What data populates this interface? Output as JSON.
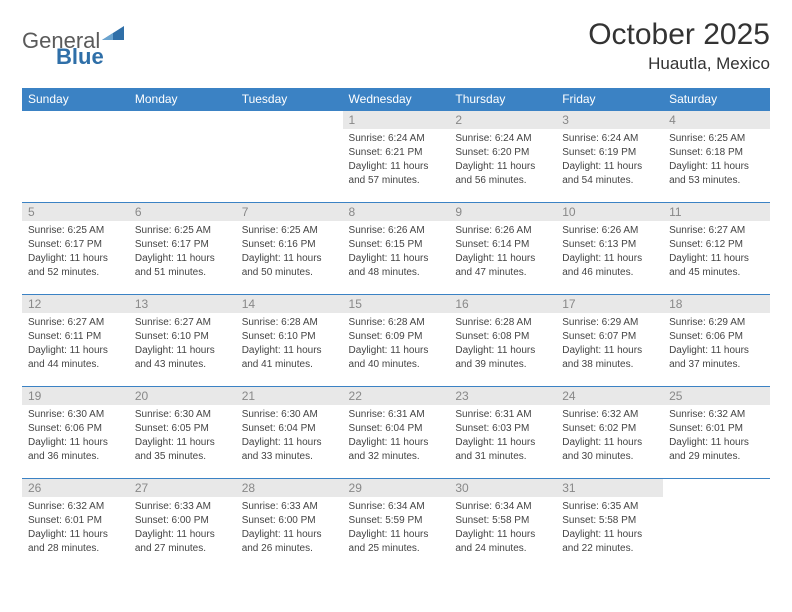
{
  "brand": {
    "word1": "General",
    "word2": "Blue"
  },
  "header": {
    "month_title": "October 2025",
    "location": "Huautla, Mexico"
  },
  "colors": {
    "header_bg": "#3b82c4",
    "header_text": "#ffffff",
    "date_band_bg": "#e8e8e8",
    "date_text": "#888888",
    "body_text": "#444444",
    "row_border": "#3b82c4"
  },
  "day_labels": [
    "Sunday",
    "Monday",
    "Tuesday",
    "Wednesday",
    "Thursday",
    "Friday",
    "Saturday"
  ],
  "weeks": [
    [
      {
        "date": "",
        "sunrise": "",
        "sunset": "",
        "daylight1": "",
        "daylight2": ""
      },
      {
        "date": "",
        "sunrise": "",
        "sunset": "",
        "daylight1": "",
        "daylight2": ""
      },
      {
        "date": "",
        "sunrise": "",
        "sunset": "",
        "daylight1": "",
        "daylight2": ""
      },
      {
        "date": "1",
        "sunrise": "Sunrise: 6:24 AM",
        "sunset": "Sunset: 6:21 PM",
        "daylight1": "Daylight: 11 hours",
        "daylight2": "and 57 minutes."
      },
      {
        "date": "2",
        "sunrise": "Sunrise: 6:24 AM",
        "sunset": "Sunset: 6:20 PM",
        "daylight1": "Daylight: 11 hours",
        "daylight2": "and 56 minutes."
      },
      {
        "date": "3",
        "sunrise": "Sunrise: 6:24 AM",
        "sunset": "Sunset: 6:19 PM",
        "daylight1": "Daylight: 11 hours",
        "daylight2": "and 54 minutes."
      },
      {
        "date": "4",
        "sunrise": "Sunrise: 6:25 AM",
        "sunset": "Sunset: 6:18 PM",
        "daylight1": "Daylight: 11 hours",
        "daylight2": "and 53 minutes."
      }
    ],
    [
      {
        "date": "5",
        "sunrise": "Sunrise: 6:25 AM",
        "sunset": "Sunset: 6:17 PM",
        "daylight1": "Daylight: 11 hours",
        "daylight2": "and 52 minutes."
      },
      {
        "date": "6",
        "sunrise": "Sunrise: 6:25 AM",
        "sunset": "Sunset: 6:17 PM",
        "daylight1": "Daylight: 11 hours",
        "daylight2": "and 51 minutes."
      },
      {
        "date": "7",
        "sunrise": "Sunrise: 6:25 AM",
        "sunset": "Sunset: 6:16 PM",
        "daylight1": "Daylight: 11 hours",
        "daylight2": "and 50 minutes."
      },
      {
        "date": "8",
        "sunrise": "Sunrise: 6:26 AM",
        "sunset": "Sunset: 6:15 PM",
        "daylight1": "Daylight: 11 hours",
        "daylight2": "and 48 minutes."
      },
      {
        "date": "9",
        "sunrise": "Sunrise: 6:26 AM",
        "sunset": "Sunset: 6:14 PM",
        "daylight1": "Daylight: 11 hours",
        "daylight2": "and 47 minutes."
      },
      {
        "date": "10",
        "sunrise": "Sunrise: 6:26 AM",
        "sunset": "Sunset: 6:13 PM",
        "daylight1": "Daylight: 11 hours",
        "daylight2": "and 46 minutes."
      },
      {
        "date": "11",
        "sunrise": "Sunrise: 6:27 AM",
        "sunset": "Sunset: 6:12 PM",
        "daylight1": "Daylight: 11 hours",
        "daylight2": "and 45 minutes."
      }
    ],
    [
      {
        "date": "12",
        "sunrise": "Sunrise: 6:27 AM",
        "sunset": "Sunset: 6:11 PM",
        "daylight1": "Daylight: 11 hours",
        "daylight2": "and 44 minutes."
      },
      {
        "date": "13",
        "sunrise": "Sunrise: 6:27 AM",
        "sunset": "Sunset: 6:10 PM",
        "daylight1": "Daylight: 11 hours",
        "daylight2": "and 43 minutes."
      },
      {
        "date": "14",
        "sunrise": "Sunrise: 6:28 AM",
        "sunset": "Sunset: 6:10 PM",
        "daylight1": "Daylight: 11 hours",
        "daylight2": "and 41 minutes."
      },
      {
        "date": "15",
        "sunrise": "Sunrise: 6:28 AM",
        "sunset": "Sunset: 6:09 PM",
        "daylight1": "Daylight: 11 hours",
        "daylight2": "and 40 minutes."
      },
      {
        "date": "16",
        "sunrise": "Sunrise: 6:28 AM",
        "sunset": "Sunset: 6:08 PM",
        "daylight1": "Daylight: 11 hours",
        "daylight2": "and 39 minutes."
      },
      {
        "date": "17",
        "sunrise": "Sunrise: 6:29 AM",
        "sunset": "Sunset: 6:07 PM",
        "daylight1": "Daylight: 11 hours",
        "daylight2": "and 38 minutes."
      },
      {
        "date": "18",
        "sunrise": "Sunrise: 6:29 AM",
        "sunset": "Sunset: 6:06 PM",
        "daylight1": "Daylight: 11 hours",
        "daylight2": "and 37 minutes."
      }
    ],
    [
      {
        "date": "19",
        "sunrise": "Sunrise: 6:30 AM",
        "sunset": "Sunset: 6:06 PM",
        "daylight1": "Daylight: 11 hours",
        "daylight2": "and 36 minutes."
      },
      {
        "date": "20",
        "sunrise": "Sunrise: 6:30 AM",
        "sunset": "Sunset: 6:05 PM",
        "daylight1": "Daylight: 11 hours",
        "daylight2": "and 35 minutes."
      },
      {
        "date": "21",
        "sunrise": "Sunrise: 6:30 AM",
        "sunset": "Sunset: 6:04 PM",
        "daylight1": "Daylight: 11 hours",
        "daylight2": "and 33 minutes."
      },
      {
        "date": "22",
        "sunrise": "Sunrise: 6:31 AM",
        "sunset": "Sunset: 6:04 PM",
        "daylight1": "Daylight: 11 hours",
        "daylight2": "and 32 minutes."
      },
      {
        "date": "23",
        "sunrise": "Sunrise: 6:31 AM",
        "sunset": "Sunset: 6:03 PM",
        "daylight1": "Daylight: 11 hours",
        "daylight2": "and 31 minutes."
      },
      {
        "date": "24",
        "sunrise": "Sunrise: 6:32 AM",
        "sunset": "Sunset: 6:02 PM",
        "daylight1": "Daylight: 11 hours",
        "daylight2": "and 30 minutes."
      },
      {
        "date": "25",
        "sunrise": "Sunrise: 6:32 AM",
        "sunset": "Sunset: 6:01 PM",
        "daylight1": "Daylight: 11 hours",
        "daylight2": "and 29 minutes."
      }
    ],
    [
      {
        "date": "26",
        "sunrise": "Sunrise: 6:32 AM",
        "sunset": "Sunset: 6:01 PM",
        "daylight1": "Daylight: 11 hours",
        "daylight2": "and 28 minutes."
      },
      {
        "date": "27",
        "sunrise": "Sunrise: 6:33 AM",
        "sunset": "Sunset: 6:00 PM",
        "daylight1": "Daylight: 11 hours",
        "daylight2": "and 27 minutes."
      },
      {
        "date": "28",
        "sunrise": "Sunrise: 6:33 AM",
        "sunset": "Sunset: 6:00 PM",
        "daylight1": "Daylight: 11 hours",
        "daylight2": "and 26 minutes."
      },
      {
        "date": "29",
        "sunrise": "Sunrise: 6:34 AM",
        "sunset": "Sunset: 5:59 PM",
        "daylight1": "Daylight: 11 hours",
        "daylight2": "and 25 minutes."
      },
      {
        "date": "30",
        "sunrise": "Sunrise: 6:34 AM",
        "sunset": "Sunset: 5:58 PM",
        "daylight1": "Daylight: 11 hours",
        "daylight2": "and 24 minutes."
      },
      {
        "date": "31",
        "sunrise": "Sunrise: 6:35 AM",
        "sunset": "Sunset: 5:58 PM",
        "daylight1": "Daylight: 11 hours",
        "daylight2": "and 22 minutes."
      },
      {
        "date": "",
        "sunrise": "",
        "sunset": "",
        "daylight1": "",
        "daylight2": ""
      }
    ]
  ]
}
